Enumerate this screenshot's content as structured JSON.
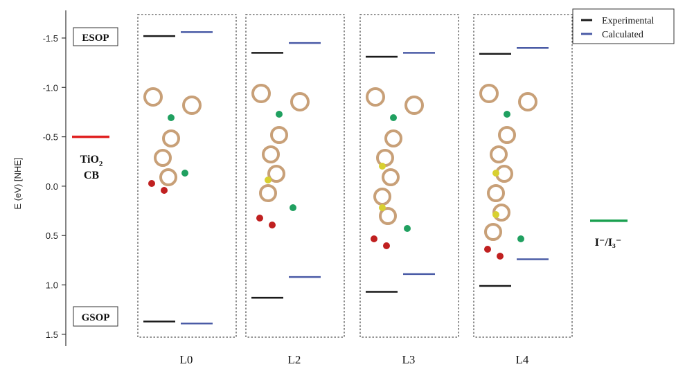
{
  "chart_data": {
    "type": "energy-level diagram",
    "ylabel": "E (eV) [NHE]",
    "ylim": [
      1.62,
      -1.78
    ],
    "yticks": [
      -1.5,
      -1.0,
      -0.5,
      0.0,
      0.5,
      1.0,
      1.5
    ],
    "ytick_labels": [
      "-1.5",
      "-1.0",
      "-0.5",
      "0.0",
      "0.5",
      "1.0",
      "1.5"
    ],
    "annotations": {
      "esop": "ESOP",
      "gsop": "GSOP"
    },
    "reference_levels": [
      {
        "name_line1": "TiO",
        "name_sub": "2",
        "name_line2": "CB",
        "value": -0.5,
        "color": "#e02020"
      },
      {
        "name": "I⁻/I₃⁻",
        "value": 0.35,
        "color": "#1aa050"
      }
    ],
    "categories": [
      "L0",
      "L2",
      "L3",
      "L4"
    ],
    "series": [
      {
        "name": "Experimental",
        "color": "#1a1a1a",
        "esop": [
          -1.52,
          -1.35,
          -1.31,
          -1.34
        ],
        "gsop": [
          1.37,
          1.13,
          1.07,
          1.01
        ]
      },
      {
        "name": "Calculated",
        "color": "#4a5ba6",
        "esop": [
          -1.56,
          -1.45,
          -1.35,
          -1.4
        ],
        "gsop": [
          1.39,
          0.92,
          0.89,
          0.74
        ]
      }
    ],
    "legend": {
      "position": "top-right"
    },
    "grid": false
  }
}
